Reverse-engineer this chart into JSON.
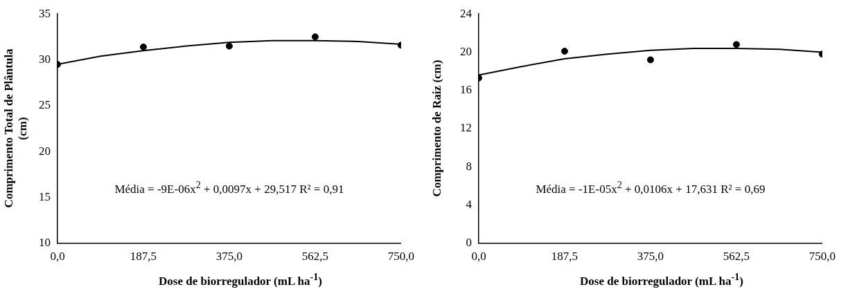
{
  "chart_data": [
    {
      "type": "scatter",
      "xlabel": "Dose de biorregulador  (mL ha$^{-1}$)",
      "ylabel": "Comprimento  Total de Plântula (cm)",
      "x": [
        0,
        187.5,
        375,
        562.5,
        750
      ],
      "series": [
        {
          "type": "scatter",
          "color": "#000000",
          "marker": "circle",
          "values": [
            29.5,
            31.4,
            31.5,
            32.5,
            31.6
          ]
        },
        {
          "type": "line",
          "color": "#000000",
          "marker": "none",
          "x": [
            0,
            93.75,
            187.5,
            281.25,
            375,
            468.75,
            562.5,
            656.25,
            750
          ],
          "values": [
            29.5,
            30.4,
            31.0,
            31.5,
            31.9,
            32.1,
            32.1,
            32.0,
            31.7
          ]
        }
      ],
      "xlim": [
        0,
        750
      ],
      "xticks": [
        {
          "value": 0,
          "label": "0,0"
        },
        {
          "value": 187.5,
          "label": "187,5"
        },
        {
          "value": 375,
          "label": "375,0"
        },
        {
          "value": 562.5,
          "label": "562,5"
        },
        {
          "value": 750,
          "label": "750,0"
        }
      ],
      "ylim": [
        10,
        35
      ],
      "yticks": [
        10,
        15,
        20,
        25,
        30,
        35
      ],
      "grid": false,
      "annotations": [
        "Média = -9E-06x$^{2}$ + 0,0097x + 29,517 R² = 0,91"
      ]
    },
    {
      "type": "scatter",
      "xlabel": "Dose de biorregulador  (mL ha$^{-1}$)",
      "ylabel": "Comprimento  de Raiz (cm)",
      "x": [
        0,
        187.5,
        375,
        562.5,
        750
      ],
      "series": [
        {
          "type": "scatter",
          "color": "#000000",
          "marker": "circle",
          "values": [
            17.3,
            20.1,
            19.2,
            20.8,
            19.8
          ]
        },
        {
          "type": "line",
          "color": "#000000",
          "marker": "none",
          "x": [
            0,
            93.75,
            187.5,
            281.25,
            375,
            468.75,
            562.5,
            656.25,
            750
          ],
          "values": [
            17.6,
            18.5,
            19.3,
            19.8,
            20.2,
            20.4,
            20.4,
            20.3,
            20.0
          ]
        }
      ],
      "xlim": [
        0,
        750
      ],
      "xticks": [
        {
          "value": 0,
          "label": "0,0"
        },
        {
          "value": 187.5,
          "label": "187,5"
        },
        {
          "value": 375,
          "label": "375,0"
        },
        {
          "value": 562.5,
          "label": "562,5"
        },
        {
          "value": 750,
          "label": "750,0"
        }
      ],
      "ylim": [
        0,
        24
      ],
      "yticks": [
        0,
        4,
        8,
        12,
        16,
        20,
        24
      ],
      "grid": false,
      "annotations": [
        "Média = -1E-05x$^{2}$ + 0,0106x + 17,631 R² = 0,69"
      ]
    }
  ]
}
